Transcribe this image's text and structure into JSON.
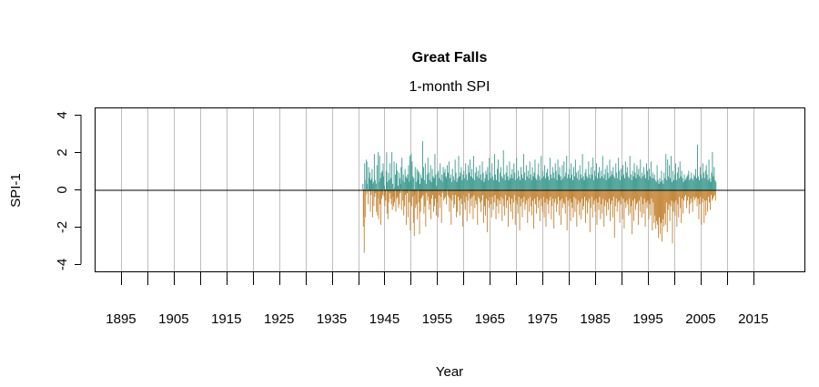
{
  "chart_data": {
    "type": "bar",
    "title": "Great Falls",
    "subtitle": "1-month SPI",
    "xlabel": "Year",
    "ylabel": "SPI-1",
    "xlim": [
      1890,
      2024.7
    ],
    "ylim": [
      -4.4,
      4.4
    ],
    "yticks": [
      -4,
      -2,
      0,
      2,
      4
    ],
    "xticks": [
      1895,
      1900,
      1905,
      1910,
      1915,
      1920,
      1925,
      1930,
      1935,
      1940,
      1945,
      1950,
      1955,
      1960,
      1965,
      1970,
      1975,
      1980,
      1985,
      1990,
      1995,
      2000,
      2005,
      2010,
      2015
    ],
    "xtick_labels": [
      "1895",
      "1905",
      "1915",
      "1925",
      "1935",
      "1945",
      "1955",
      "1965",
      "1975",
      "1985",
      "1995",
      "2005",
      "2015"
    ],
    "xtick_label_years": [
      1895,
      1905,
      1915,
      1925,
      1935,
      1945,
      1955,
      1965,
      1975,
      1985,
      1995,
      2005,
      2015
    ],
    "grid": "vertical",
    "colors": {
      "positive": "#3a9a8f",
      "negative": "#c28230",
      "grid": "#bebebe"
    },
    "series_start": "1940-11",
    "frequency": "monthly",
    "values": [
      0.3,
      -2.0,
      -1.4,
      -3.4,
      1.4,
      0.5,
      -1.5,
      -0.3,
      1.6,
      1.5,
      0.3,
      -0.2,
      -0.8,
      1.2,
      0.6,
      -0.1,
      0.9,
      -1.2,
      0.5,
      -0.3,
      0.6,
      1.1,
      -1.5,
      0.3,
      0.4,
      -0.9,
      1.9,
      -0.4,
      0.5,
      -0.2,
      0.3,
      -1.2,
      1.3,
      -1.4,
      -0.5,
      2.0,
      -1.6,
      0.4,
      1.8,
      -0.8,
      0.6,
      -1.9,
      0.9,
      -0.5,
      1.0,
      -0.3,
      1.4,
      0.7,
      -0.4,
      0.2,
      -0.9,
      -0.3,
      -0.6,
      1.0,
      2.0,
      -1.3,
      0.4,
      -1.6,
      0.9,
      -0.7,
      0.5,
      -0.2,
      1.4,
      -0.5,
      0.6,
      -0.8,
      2.0,
      -1.1,
      0.3,
      -0.4,
      -0.9,
      1.5,
      -0.7,
      0.1,
      0.8,
      -1.2,
      1.4,
      -0.5,
      1.0,
      -0.4,
      0.2,
      -1.0,
      0.9,
      -0.8,
      0.6,
      -0.2,
      0.3,
      1.2,
      -1.1,
      1.7,
      0.5,
      -0.6,
      0.8,
      -1.4,
      0.4,
      -0.9,
      1.1,
      -0.3,
      0.7,
      -1.9,
      0.6,
      -0.2,
      0.8,
      -1.5,
      1.3,
      0.4,
      -0.7,
      1.8,
      -2.2,
      0.5,
      1.9,
      -0.9,
      1.5,
      -0.4,
      0.7,
      -1.8,
      0.6,
      -2.5,
      -0.3,
      1.2,
      -1.0,
      0.4,
      -0.8,
      1.1,
      -1.6,
      0.5,
      1.0,
      -0.7,
      0.9,
      -2.4,
      0.3,
      -1.2,
      0.8,
      -0.5,
      0.6,
      -0.4,
      2.6,
      -0.3,
      1.2,
      -1.3,
      0.5,
      -0.9,
      1.4,
      -2.0,
      0.3,
      -0.2,
      0.8,
      -0.6,
      1.7,
      -0.4,
      0.9,
      -1.1,
      0.5,
      -0.8,
      1.3,
      -1.6,
      0.4,
      -0.5,
      1.1,
      -0.3,
      0.7,
      -1.2,
      0.6,
      -0.9,
      1.9,
      -0.5,
      0.8,
      -1.4,
      0.2,
      -0.7,
      0.9,
      -1.5,
      1.0,
      -0.3,
      0.6,
      -1.0,
      1.4,
      -0.4,
      0.5,
      -1.8,
      0.8,
      -0.2,
      0.4,
      1.2,
      -0.6,
      0.9,
      -0.5,
      1.1,
      -0.4,
      0.7,
      -0.8,
      0.6,
      1.3,
      -0.3,
      0.9,
      -0.4,
      1.5,
      -1.2,
      0.6,
      -0.5,
      0.8,
      -1.9,
      0.4,
      -0.6,
      1.1,
      -0.3,
      0.7,
      -1.0,
      0.5,
      -0.8,
      1.6,
      -0.3,
      0.9,
      -1.5,
      0.4,
      -1.2,
      0.6,
      -0.4,
      1.8,
      -0.6,
      0.7,
      -1.4,
      0.9,
      -0.5,
      1.2,
      -0.8,
      0.5,
      -2.0,
      0.8,
      -0.3,
      1.0,
      -0.7,
      0.6,
      -1.1,
      1.4,
      -0.4,
      0.8,
      -1.7,
      0.5,
      -0.6,
      1.3,
      -0.2,
      0.9,
      -1.3,
      1.6,
      -0.5,
      0.7,
      -0.9,
      1.1,
      -0.4,
      0.6,
      -1.6,
      1.8,
      -0.3,
      0.5,
      -1.0,
      0.9,
      -0.6,
      1.2,
      -0.8,
      0.7,
      -1.9,
      1.0,
      -0.4,
      0.6,
      -0.5,
      1.3,
      -0.7,
      0.8,
      -1.2,
      0.5,
      -0.6,
      1.5,
      -0.3,
      0.9,
      -1.8,
      0.4,
      -0.9,
      0.6,
      -1.4,
      1.0,
      -0.5,
      0.8,
      -2.3,
      1.2,
      -0.6,
      0.5,
      -1.0,
      1.7,
      -0.4,
      0.9,
      -0.8,
      0.6,
      -1.5,
      1.4,
      -0.4,
      0.7,
      -1.1,
      0.5,
      -0.7,
      1.9,
      -0.3,
      0.8,
      -1.6,
      0.5,
      -0.9,
      1.1,
      -0.5,
      1.6,
      -1.3,
      0.4,
      -0.6,
      0.9,
      -0.8,
      1.2,
      -0.4,
      0.7,
      -1.7,
      0.6,
      -0.5,
      2.1,
      -0.9,
      0.8,
      -1.4,
      0.5,
      -0.3,
      0.9,
      -1.0,
      1.3,
      -0.6,
      0.7,
      -2.0,
      0.5,
      -0.4,
      1.5,
      -0.8,
      0.6,
      -1.2,
      0.8,
      -0.5,
      1.1,
      -1.6,
      0.6,
      -0.7,
      1.4,
      -0.3,
      0.9,
      -1.9,
      0.5,
      -0.6,
      1.7,
      -0.8,
      0.6,
      -1.3,
      1.0,
      -0.4,
      0.7,
      -2.2,
      0.5,
      -0.9,
      1.2,
      -0.5,
      0.8,
      -1.5,
      0.6,
      -0.7,
      1.9,
      -0.4,
      0.9,
      -1.1,
      0.5,
      -0.8,
      1.3,
      -0.6,
      0.7,
      -1.8,
      1.0,
      -0.5,
      0.6,
      -1.2,
      1.5,
      -0.4,
      0.8,
      -0.9,
      0.5,
      -1.4,
      1.2,
      -0.6,
      0.7,
      -2.1,
      0.9,
      -0.5,
      1.6,
      -0.8,
      0.6,
      -1.3,
      0.5,
      -0.4,
      0.8,
      -1.0,
      1.4,
      -0.6,
      0.7,
      -1.7,
      0.5,
      -0.5,
      1.8,
      -0.9,
      0.6,
      -1.2,
      1.0,
      -0.4,
      0.7,
      -1.5,
      1.3,
      -0.7,
      0.6,
      -2.0,
      0.9,
      -0.5,
      1.1,
      -0.8,
      0.7,
      -1.3,
      0.5,
      -0.6,
      1.7,
      -0.4,
      0.8,
      -1.6,
      0.6,
      -0.9,
      1.2,
      -0.5,
      0.9,
      -2.1,
      0.6,
      -0.7,
      1.4,
      -0.5,
      1.0,
      -1.2,
      0.5,
      -0.8,
      1.6,
      -0.4,
      0.8,
      -1.4,
      1.2,
      -0.6,
      0.7,
      -1.9,
      0.5,
      -0.5,
      1.3,
      -1.0,
      0.6,
      -0.7,
      1.5,
      -0.8,
      0.7,
      -1.3,
      0.9,
      -0.4,
      1.8,
      -2.2,
      0.6,
      -0.6,
      0.8,
      -0.9,
      1.1,
      -0.5,
      0.6,
      -1.7,
      1.4,
      -0.7,
      0.8,
      -1.0,
      0.5,
      -1.5,
      1.2,
      -0.4,
      0.7,
      -1.2,
      1.6,
      -0.5,
      0.9,
      -2.0,
      0.6,
      -0.8,
      1.0,
      -0.6,
      0.5,
      -1.4,
      1.3,
      -0.7,
      0.8,
      -1.6,
      0.6,
      -0.5,
      1.9,
      -1.1,
      0.7,
      -0.9,
      0.5,
      -0.4,
      0.9,
      -1.8,
      1.1,
      -0.6,
      0.7,
      -1.3,
      0.6,
      -0.7,
      1.5,
      -0.5,
      0.8,
      -2.3,
      0.6,
      -1.0,
      1.2,
      -0.4,
      0.8,
      -1.5,
      1.7,
      -0.8,
      0.5,
      -0.6,
      1.0,
      -1.2,
      0.7,
      -0.5,
      1.4,
      -1.9,
      0.6,
      -0.7,
      0.9,
      -1.1,
      1.2,
      -0.4,
      0.6,
      -1.6,
      1.0,
      -0.8,
      0.7,
      -1.3,
      1.8,
      -0.5,
      0.6,
      -2.0,
      0.8,
      -0.9,
      1.1,
      -0.6,
      0.5,
      -1.4,
      1.3,
      -0.7,
      0.9,
      -1.1,
      0.6,
      -0.5,
      1.6,
      -1.7,
      0.7,
      -0.8,
      1.0,
      -0.6,
      0.8,
      -1.5,
      1.2,
      -0.4,
      0.7,
      -2.6,
      0.6,
      -0.9,
      1.4,
      -0.5,
      0.9,
      -1.2,
      0.6,
      -0.7,
      1.7,
      -0.6,
      1.0,
      -1.8,
      0.5,
      -0.8,
      1.1,
      -0.4,
      0.7,
      -1.6,
      1.3,
      -0.5,
      0.8,
      -2.1,
      0.6,
      -0.7,
      1.5,
      -1.0,
      0.9,
      -0.6,
      1.2,
      -0.8,
      0.7,
      -1.4,
      0.6,
      -0.5,
      1.8,
      -1.3,
      0.8,
      -0.9,
      0.5,
      -2.4,
      1.0,
      -0.6,
      0.7,
      -1.7,
      1.4,
      -0.5,
      0.9,
      -1.1,
      0.6,
      -0.8,
      1.3,
      -0.7,
      0.8,
      -1.9,
      1.1,
      -0.6,
      0.7,
      -1.2,
      1.6,
      -0.4,
      0.6,
      -1.5,
      0.9,
      -0.8,
      0.7,
      -1.3,
      1.2,
      -0.5,
      0.8,
      -2.0,
      0.6,
      -0.7,
      1.4,
      -1.0,
      1.0,
      -0.6,
      0.5,
      -1.6,
      1.1,
      -0.8,
      0.7,
      -1.4,
      1.5,
      -0.5,
      0.6,
      -2.2,
      0.9,
      -0.7,
      0.6,
      -1.8,
      0.8,
      -1.4,
      0.5,
      -2.1,
      0.4,
      -1.7,
      1.3,
      -1.9,
      0.5,
      -2.6,
      0.3,
      -1.5,
      0.6,
      -2.4,
      0.4,
      -1.8,
      1.0,
      -2.8,
      0.5,
      -1.6,
      0.3,
      -2.0,
      0.9,
      -1.3,
      0.6,
      -1.9,
      1.9,
      -0.7,
      0.5,
      -2.3,
      1.6,
      -1.1,
      0.7,
      -0.8,
      1.3,
      -1.7,
      0.6,
      -0.9,
      1.8,
      -0.6,
      0.4,
      -2.9,
      1.0,
      -1.2,
      0.5,
      -0.7,
      0.8,
      -1.4,
      1.4,
      -0.6,
      0.5,
      -2.0,
      0.9,
      -0.8,
      1.2,
      -1.5,
      0.6,
      -0.4,
      1.5,
      -1.0,
      0.7,
      -1.8,
      1.0,
      -0.5,
      0.6,
      -1.3,
      0.4,
      -0.6,
      0.8,
      -0.4,
      0.5,
      -0.3,
      0.6,
      -1.0,
      0.7,
      -0.6,
      0.8,
      -0.4,
      1.0,
      -1.3,
      0.5,
      -0.8,
      0.6,
      -0.5,
      0.9,
      -0.7,
      0.6,
      -1.2,
      0.5,
      -0.4,
      0.8,
      -0.6,
      0.7,
      -0.5,
      1.1,
      -0.4,
      0.6,
      -0.9,
      2.4,
      -0.5,
      0.7,
      -1.6,
      0.5,
      -0.8,
      1.2,
      -0.4,
      0.8,
      -1.9,
      0.6,
      -0.7,
      1.4,
      -0.5,
      0.9,
      -1.8,
      0.6,
      -0.6,
      1.0,
      -1.4,
      1.3,
      -0.6,
      0.8,
      -1.2,
      0.5,
      -0.4,
      1.6,
      -0.7,
      0.6,
      -1.1,
      0.4,
      -0.3,
      0.9,
      -0.6,
      2.0,
      -0.5,
      0.7,
      -0.4,
      1.2,
      -0.3,
      0.5,
      -0.6,
      0.4
    ]
  }
}
